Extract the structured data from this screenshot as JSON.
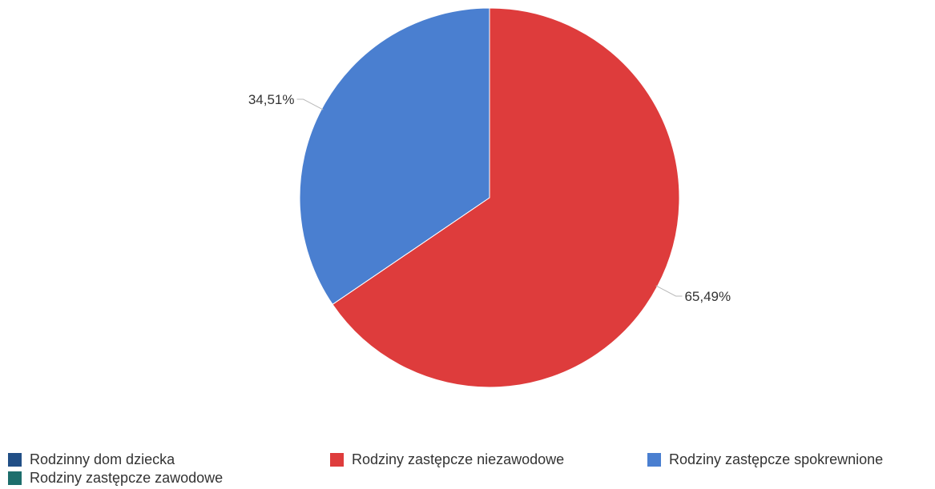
{
  "chart_data": {
    "type": "pie",
    "title": "",
    "slices": [
      {
        "name": "Rodziny zastępcze niezawodowe",
        "value": 65.49,
        "label": "65,49%",
        "color": "#de3c3c"
      },
      {
        "name": "Rodziny zastępcze spokrewnione",
        "value": 34.51,
        "label": "34,51%",
        "color": "#4a7fd0"
      }
    ],
    "legend": {
      "position": "bottom",
      "items": [
        {
          "label": "Rodzinny dom dziecka",
          "color": "#214f86"
        },
        {
          "label": "Rodziny zastępcze niezawodowe",
          "color": "#de3c3c"
        },
        {
          "label": "Rodziny zastępcze spokrewnione",
          "color": "#4a7fd0"
        },
        {
          "label": "Rodziny zastępcze zawodowe",
          "color": "#1d6e6c"
        }
      ]
    }
  }
}
